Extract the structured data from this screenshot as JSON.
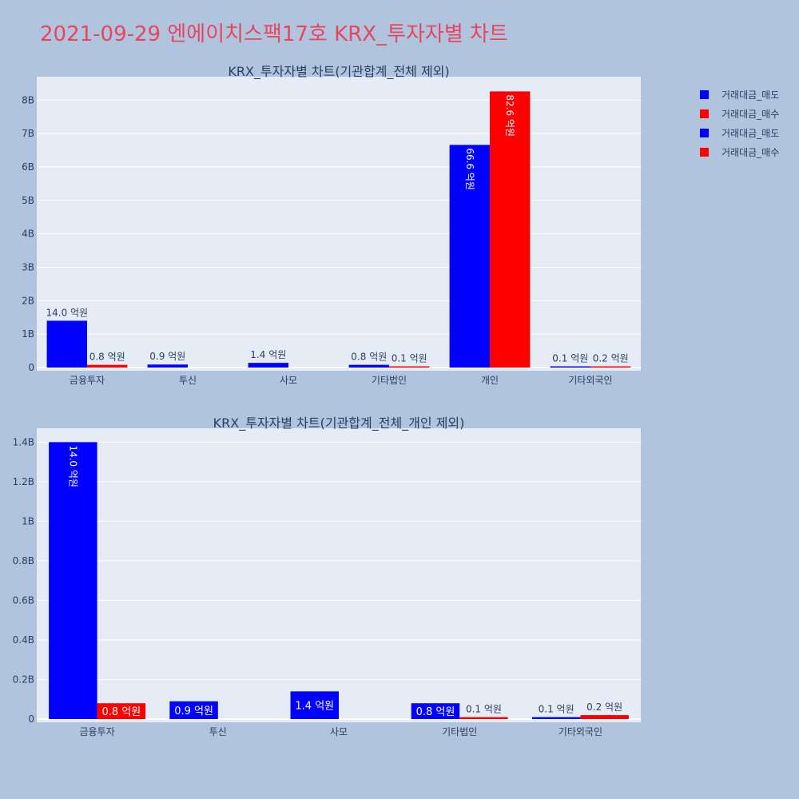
{
  "title": "2021-09-29 엔에이치스팩17호 KRX_투자자별 차트",
  "colors": {
    "sell": "#0000ff",
    "buy": "#ff0000",
    "plot_bg": "#e5ecf6",
    "page_bg": "#b0c4de",
    "text": "#2a3f5f",
    "title": "#e8455f"
  },
  "legend": [
    {
      "label": "거래대금_매도",
      "color": "#0000ff"
    },
    {
      "label": "거래대금_매수",
      "color": "#ff0000"
    },
    {
      "label": "거래대금_매도",
      "color": "#0000ff"
    },
    {
      "label": "거래대금_매수",
      "color": "#ff0000"
    }
  ],
  "chart_data": [
    {
      "type": "bar",
      "title": "KRX_투자자별 차트(기관합계_전체 제외)",
      "categories": [
        "금융투자",
        "투신",
        "사모",
        "기타법인",
        "개인",
        "기타외국인"
      ],
      "series": [
        {
          "name": "거래대금_매도",
          "values": [
            1400000000,
            90000000,
            140000000,
            80000000,
            6660000000,
            10000000
          ],
          "labels": [
            "14.0 억원",
            "0.9 억원",
            "1.4 억원",
            "0.8 억원",
            "66.6 억원",
            "0.1 억원"
          ]
        },
        {
          "name": "거래대금_매수",
          "values": [
            80000000,
            0,
            0,
            10000000,
            8260000000,
            20000000
          ],
          "labels": [
            "0.8 억원",
            "",
            "",
            "0.1 억원",
            "82.6 억원",
            "0.2 억원"
          ]
        }
      ],
      "yticks": [
        "0",
        "1B",
        "2B",
        "3B",
        "4B",
        "5B",
        "6B",
        "7B",
        "8B"
      ],
      "ylim": [
        0,
        8700000000
      ],
      "grid": true
    },
    {
      "type": "bar",
      "title": "KRX_투자자별 차트(기관합계_전체_개인 제외)",
      "categories": [
        "금융투자",
        "투신",
        "사모",
        "기타법인",
        "기타외국인"
      ],
      "series": [
        {
          "name": "거래대금_매도",
          "values": [
            1400000000,
            90000000,
            140000000,
            80000000,
            10000000
          ],
          "labels": [
            "14.0 억원",
            "0.9 억원",
            "1.4 억원",
            "0.8 억원",
            "0.1 억원"
          ]
        },
        {
          "name": "거래대금_매수",
          "values": [
            80000000,
            0,
            0,
            10000000,
            20000000
          ],
          "labels": [
            "0.8 억원",
            "",
            "",
            "0.1 억원",
            "0.2 억원"
          ]
        }
      ],
      "yticks": [
        "0",
        "0.2B",
        "0.4B",
        "0.6B",
        "0.8B",
        "1B",
        "1.2B",
        "1.4B"
      ],
      "ylim": [
        0,
        1470000000
      ],
      "grid": true
    }
  ]
}
